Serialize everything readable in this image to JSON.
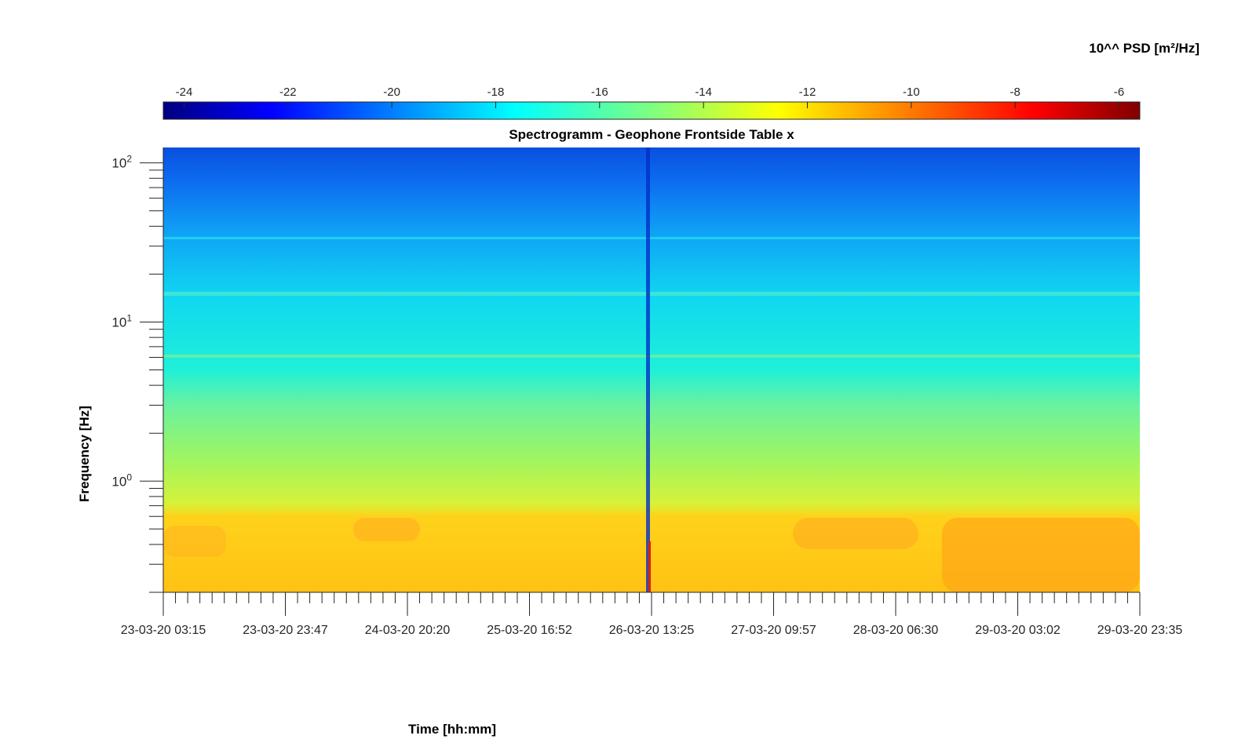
{
  "chart_data": {
    "type": "heatmap",
    "title": "Spectrogramm - Geophone Frontside Table x",
    "xlabel": "Time [hh:mm]",
    "ylabel": "Frequency [Hz]",
    "x_ticks": [
      "23-03-20 03:15",
      "23-03-20 23:47",
      "24-03-20 20:20",
      "25-03-20 16:52",
      "26-03-20 13:25",
      "27-03-20 09:57",
      "28-03-20 06:30",
      "29-03-20 03:02",
      "29-03-20 23:35"
    ],
    "y_scale": "log",
    "y_ticks": [
      {
        "base": "10",
        "exp": "0",
        "value": 1
      },
      {
        "base": "10",
        "exp": "1",
        "value": 10
      },
      {
        "base": "10",
        "exp": "2",
        "value": 100
      }
    ],
    "ylim": [
      0.2,
      125
    ],
    "colorbar": {
      "label": "10^^ PSD [m²/Hz]",
      "ticks": [
        "-24",
        "-22",
        "-20",
        "-18",
        "-16",
        "-14",
        "-12",
        "-10",
        "-8",
        "-6"
      ],
      "range": [
        -24.4,
        -5.6
      ],
      "colormap": "jet"
    },
    "description_levels": [
      {
        "freq_range": [
          30,
          125
        ],
        "log_psd": -19.5
      },
      {
        "freq_range": [
          8,
          30
        ],
        "log_psd": -17.5
      },
      {
        "freq_range": [
          1.5,
          8
        ],
        "log_psd": -15.5
      },
      {
        "freq_range": [
          0.6,
          1.5
        ],
        "log_psd": -14.5
      },
      {
        "freq_range": [
          0.2,
          0.6
        ],
        "log_psd": -12.5
      }
    ]
  }
}
